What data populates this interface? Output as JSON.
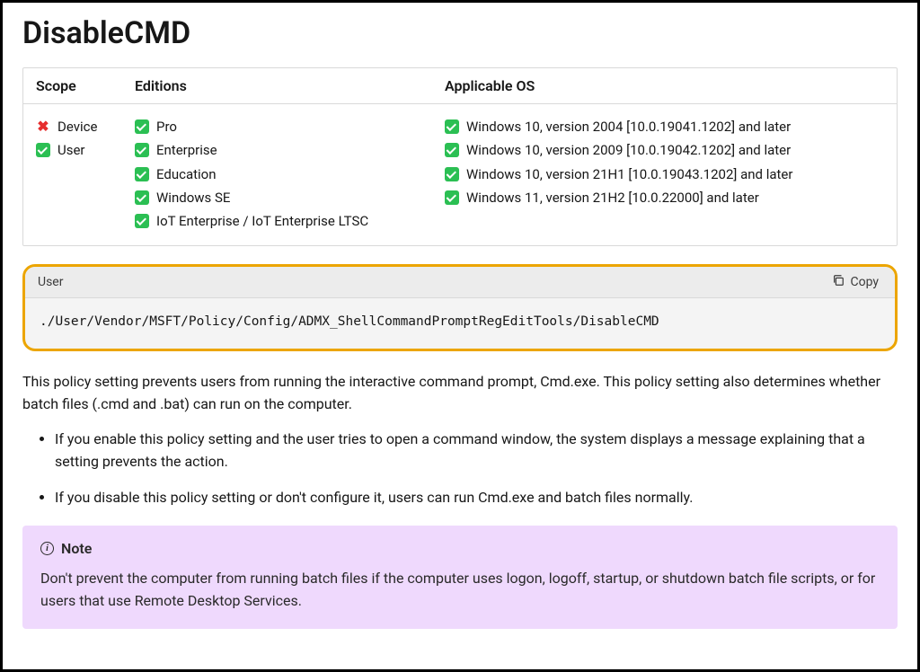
{
  "colors": {
    "page_border": "#000000",
    "table_border": "#d9d9d9",
    "check_bg": "#2bbf53",
    "cross_fg": "#e62e2e",
    "code_border": "#eca500",
    "code_header_bg": "#ececec",
    "code_body_bg": "#f4f4f4",
    "note_bg": "#efd9fd",
    "body_text": "#171717"
  },
  "title": "DisableCMD",
  "table": {
    "headers": {
      "scope": "Scope",
      "editions": "Editions",
      "os": "Applicable OS"
    },
    "scope": [
      {
        "ok": false,
        "label": "Device"
      },
      {
        "ok": true,
        "label": "User"
      }
    ],
    "editions": [
      {
        "ok": true,
        "label": "Pro"
      },
      {
        "ok": true,
        "label": "Enterprise"
      },
      {
        "ok": true,
        "label": "Education"
      },
      {
        "ok": true,
        "label": "Windows SE"
      },
      {
        "ok": true,
        "label": "IoT Enterprise / IoT Enterprise LTSC"
      }
    ],
    "os": [
      {
        "ok": true,
        "label": "Windows 10, version 2004 [10.0.19041.1202] and later"
      },
      {
        "ok": true,
        "label": "Windows 10, version 2009 [10.0.19042.1202] and later"
      },
      {
        "ok": true,
        "label": "Windows 10, version 21H1 [10.0.19043.1202] and later"
      },
      {
        "ok": true,
        "label": "Windows 11, version 21H2 [10.0.22000] and later"
      }
    ]
  },
  "code": {
    "header_label": "User",
    "copy_label": "Copy",
    "path": "./User/Vendor/MSFT/Policy/Config/ADMX_ShellCommandPromptRegEditTools/DisableCMD"
  },
  "description": "This policy setting prevents users from running the interactive command prompt, Cmd.exe. This policy setting also determines whether batch files (.cmd and .bat) can run on the computer.",
  "bullets": [
    "If you enable this policy setting and the user tries to open a command window, the system displays a message explaining that a setting prevents the action.",
    "If you disable this policy setting or don't configure it, users can run Cmd.exe and batch files normally."
  ],
  "note": {
    "title": "Note",
    "text": "Don't prevent the computer from running batch files if the computer uses logon, logoff, startup, or shutdown batch file scripts, or for users that use Remote Desktop Services."
  }
}
